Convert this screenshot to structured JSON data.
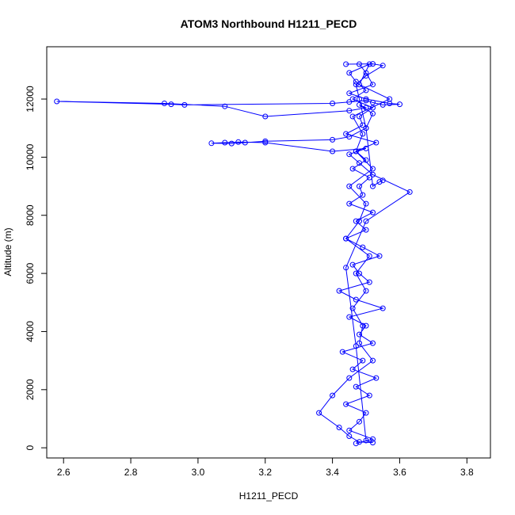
{
  "chart_data": {
    "type": "line",
    "title": "ATOM3 Northbound H1211_PECD",
    "xlabel": "H1211_PECD",
    "ylabel": "Altitude (m)",
    "xlim": [
      2.55,
      3.87
    ],
    "ylim": [
      -350,
      13800
    ],
    "x_ticks": [
      2.6,
      2.8,
      3.0,
      3.2,
      3.4,
      3.6,
      3.8
    ],
    "x_tick_labels": [
      "2.6",
      "2.8",
      "3.0",
      "3.2",
      "3.4",
      "3.6",
      "3.8"
    ],
    "y_ticks": [
      0,
      2000,
      4000,
      6000,
      8000,
      10000,
      12000
    ],
    "y_tick_labels": [
      "0",
      "2000",
      "4000",
      "6000",
      "8000",
      "10000",
      "12000"
    ],
    "grid": false,
    "legend": "none",
    "color": "#0000ff",
    "markers": "open-circle",
    "series": [
      {
        "x": [
          3.47,
          3.52,
          3.45,
          3.48,
          3.5,
          3.44,
          3.51,
          3.47,
          3.53,
          3.46,
          3.49,
          3.43,
          3.52,
          3.48,
          3.5,
          3.45,
          3.55,
          3.47,
          3.42,
          3.51,
          3.48,
          3.46,
          3.54,
          3.49,
          3.44,
          3.5,
          3.47,
          3.52,
          3.45,
          3.49,
          3.48,
          3.51,
          3.46,
          3.5,
          3.47,
          3.53,
          3.44,
          3.49,
          3.48,
          3.52,
          3.46,
          3.5,
          3.47,
          3.45,
          3.51,
          3.48,
          3.57,
          3.46,
          3.49,
          3.47,
          3.52,
          3.45,
          3.5,
          3.48,
          3.44,
          3.51,
          3.47,
          3.5,
          3.46,
          3.49,
          3.48,
          3.52,
          3.45,
          3.4,
          3.36,
          3.42,
          3.45,
          3.48,
          3.52,
          3.5,
          3.47,
          3.44,
          3.5,
          3.63,
          3.52,
          3.48,
          3.45,
          3.5,
          3.4,
          3.2,
          3.12,
          3.08,
          3.04,
          3.1,
          3.14,
          3.2,
          3.4,
          3.45,
          3.5,
          3.52,
          3.48,
          3.5,
          3.45,
          3.2,
          3.08,
          2.9,
          2.58,
          2.92,
          2.96,
          3.4,
          3.45,
          3.5,
          3.52,
          3.55,
          3.6,
          3.57,
          3.5,
          3.45,
          3.52,
          3.5,
          3.48,
          3.44,
          3.52,
          3.55,
          3.5,
          3.47,
          3.48,
          3.5,
          3.52,
          3.54,
          3.55
        ],
        "y": [
          150,
          300,
          600,
          900,
          1200,
          1500,
          1800,
          2100,
          2400,
          2700,
          3000,
          3300,
          3600,
          3900,
          4200,
          4500,
          4800,
          5100,
          5400,
          5700,
          6000,
          6300,
          6600,
          6900,
          7200,
          7500,
          7800,
          8100,
          8400,
          8700,
          9000,
          9300,
          9600,
          9900,
          10200,
          10500,
          10800,
          11100,
          11400,
          11700,
          12000,
          12300,
          12600,
          12900,
          13200,
          12500,
          12000,
          11400,
          10800,
          10200,
          9600,
          9000,
          8400,
          7800,
          7200,
          6600,
          6000,
          5400,
          4800,
          4200,
          3600,
          3000,
          2400,
          1800,
          1200,
          700,
          400,
          200,
          180,
          250,
          3500,
          6200,
          7800,
          8800,
          9400,
          9800,
          10100,
          10300,
          10200,
          10500,
          10520,
          10500,
          10480,
          10470,
          10500,
          10550,
          10600,
          10700,
          11000,
          11500,
          11800,
          11700,
          11600,
          11400,
          11750,
          11850,
          11920,
          11820,
          11800,
          11850,
          11900,
          11950,
          11880,
          11800,
          11820,
          11850,
          12000,
          12200,
          12500,
          12900,
          13200,
          13200,
          13210,
          13150,
          12800,
          12500,
          12000,
          11000,
          9000,
          9150,
          9200
        ]
      }
    ]
  }
}
